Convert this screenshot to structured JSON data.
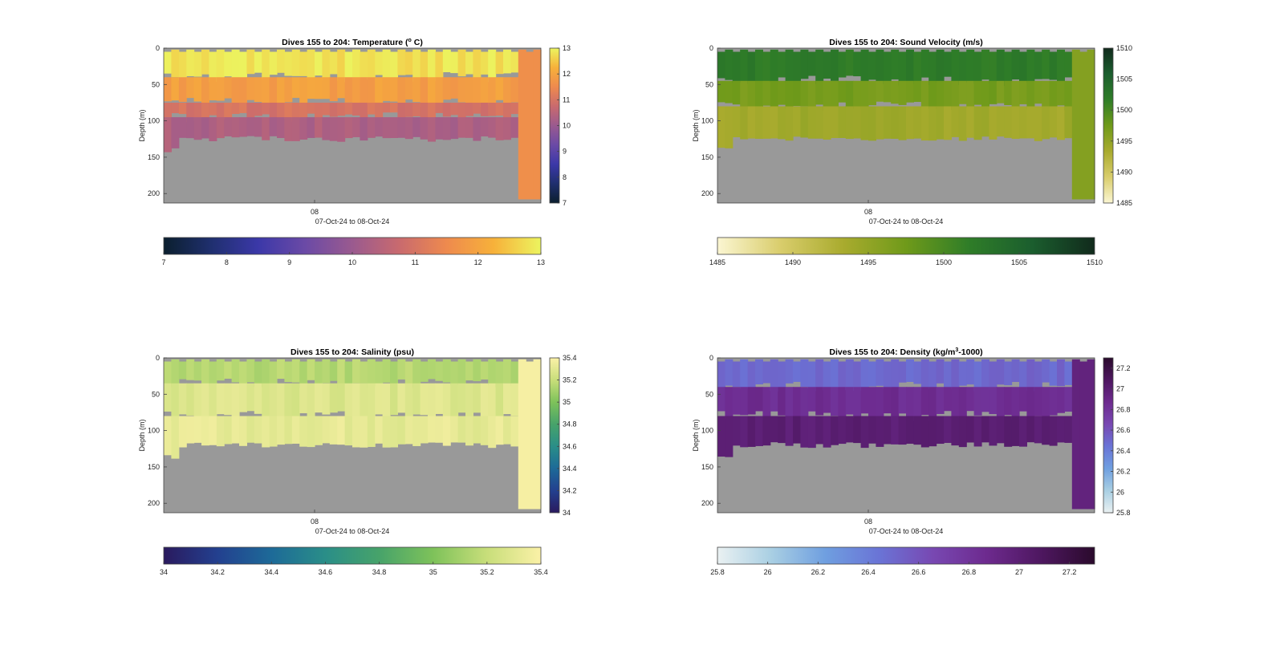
{
  "figure": {
    "background": "#ffffff",
    "seafloor_color": "#999999",
    "date_tick": "08",
    "xlabel": "07-Oct-24 to 08-Oct-24",
    "ylabel": "Depth (m)"
  },
  "chart_data": [
    {
      "type": "heatmap",
      "title_main": "Dives 155 to 204: Temperature (",
      "title_sup": "o",
      "title_tail": " C)",
      "variable": "Temperature",
      "units": "°C",
      "dives": [
        155,
        204
      ],
      "xlabel": "07-Oct-24 to 08-Oct-24",
      "xticks": [
        "08"
      ],
      "ylabel": "Depth (m)",
      "yticks": [
        0,
        50,
        100,
        150,
        200
      ],
      "ylim": [
        0,
        213
      ],
      "y_reversed": true,
      "clim": [
        7,
        13
      ],
      "cticks_vertical": [
        "7",
        "8",
        "9",
        "10",
        "11",
        "12",
        "13"
      ],
      "cticks_horizontal": [
        "7",
        "8",
        "9",
        "10",
        "11",
        "12",
        "13"
      ],
      "colormap": [
        "#0b1f2e",
        "#1f2f6e",
        "#3b38a8",
        "#6b4aa6",
        "#9a5a8f",
        "#c96a6e",
        "#ee8a4e",
        "#f7b13a",
        "#ecf45f"
      ],
      "profile_layers": [
        {
          "depth_top": 0,
          "depth_bottom": 40,
          "value": 12.8
        },
        {
          "depth_top": 40,
          "depth_bottom": 75,
          "value": 11.9
        },
        {
          "depth_top": 75,
          "depth_bottom": 95,
          "value": 11.0
        },
        {
          "depth_top": 95,
          "depth_bottom": 130,
          "value": 10.3
        }
      ],
      "final_dive_value": 11.6,
      "seafloor_depth_m": 125
    },
    {
      "type": "heatmap",
      "title_main": "Dives 155 to 204: Sound Velocity (m/s)",
      "title_sup": "",
      "title_tail": "",
      "variable": "Sound Velocity",
      "units": "m/s",
      "dives": [
        155,
        204
      ],
      "xlabel": "07-Oct-24 to 08-Oct-24",
      "xticks": [
        "08"
      ],
      "ylabel": "Depth (m)",
      "yticks": [
        0,
        50,
        100,
        150,
        200
      ],
      "ylim": [
        0,
        213
      ],
      "y_reversed": true,
      "clim": [
        1485,
        1510
      ],
      "cticks_vertical": [
        "1485",
        "1490",
        "1495",
        "1500",
        "1505",
        "1510"
      ],
      "cticks_horizontal": [
        "1485",
        "1490",
        "1495",
        "1500",
        "1505",
        "1510"
      ],
      "colormap": [
        "#fbf6d2",
        "#d9cd6c",
        "#a9ab2e",
        "#6f9a1a",
        "#2f7d28",
        "#1b5e2e",
        "#112a1c"
      ],
      "profile_layers": [
        {
          "depth_top": 0,
          "depth_bottom": 45,
          "value": 1502
        },
        {
          "depth_top": 45,
          "depth_bottom": 80,
          "value": 1497
        },
        {
          "depth_top": 80,
          "depth_bottom": 130,
          "value": 1494
        }
      ],
      "final_dive_value": 1496,
      "seafloor_depth_m": 125
    },
    {
      "type": "heatmap",
      "title_main": "Dives 155 to 204: Salinity (psu)",
      "title_sup": "",
      "title_tail": "",
      "variable": "Salinity",
      "units": "psu",
      "dives": [
        155,
        204
      ],
      "xlabel": "07-Oct-24 to 08-Oct-24",
      "xticks": [
        "08"
      ],
      "ylabel": "Depth (m)",
      "yticks": [
        0,
        50,
        100,
        150,
        200
      ],
      "ylim": [
        0,
        213
      ],
      "y_reversed": true,
      "clim": [
        34,
        35.4
      ],
      "cticks_vertical": [
        "34",
        "34.2",
        "34.4",
        "34.6",
        "34.8",
        "35",
        "35.2",
        "35.4"
      ],
      "cticks_horizontal": [
        "34",
        "34.2",
        "34.4",
        "34.6",
        "34.8",
        "35",
        "35.2",
        "35.4"
      ],
      "colormap": [
        "#2a1a5e",
        "#23408f",
        "#1d6a98",
        "#2a8e88",
        "#47a36a",
        "#7ec25a",
        "#c8de7a",
        "#fbf1a7"
      ],
      "profile_layers": [
        {
          "depth_top": 0,
          "depth_bottom": 35,
          "value": 35.15
        },
        {
          "depth_top": 35,
          "depth_bottom": 80,
          "value": 35.28
        },
        {
          "depth_top": 80,
          "depth_bottom": 130,
          "value": 35.32
        }
      ],
      "final_dive_value": 35.38,
      "seafloor_depth_m": 120
    },
    {
      "type": "heatmap",
      "title_main": "Dives 155 to 204: Density (kg/m",
      "title_sup": "3",
      "title_tail": "-1000)",
      "variable": "Density",
      "units": "kg/m3-1000",
      "dives": [
        155,
        204
      ],
      "xlabel": "07-Oct-24 to 08-Oct-24",
      "xticks": [
        "08"
      ],
      "ylabel": "Depth (m)",
      "yticks": [
        0,
        50,
        100,
        150,
        200
      ],
      "ylim": [
        0,
        213
      ],
      "y_reversed": true,
      "clim": [
        25.8,
        27.3
      ],
      "cticks_vertical": [
        "25.8",
        "26",
        "26.2",
        "26.4",
        "26.6",
        "26.8",
        "27",
        "27.2"
      ],
      "cticks_horizontal": [
        "25.8",
        "26",
        "26.2",
        "26.4",
        "26.6",
        "26.8",
        "27",
        "27.2"
      ],
      "colormap": [
        "#eaf1f2",
        "#a9cfe3",
        "#6f9fe0",
        "#6a74d6",
        "#7848b2",
        "#6d2a8e",
        "#4e1760",
        "#2a0a2c"
      ],
      "profile_layers": [
        {
          "depth_top": 0,
          "depth_bottom": 40,
          "value": 26.5
        },
        {
          "depth_top": 40,
          "depth_bottom": 80,
          "value": 26.85
        },
        {
          "depth_top": 80,
          "depth_bottom": 130,
          "value": 27.0
        }
      ],
      "final_dive_value": 26.95,
      "seafloor_depth_m": 120
    }
  ]
}
